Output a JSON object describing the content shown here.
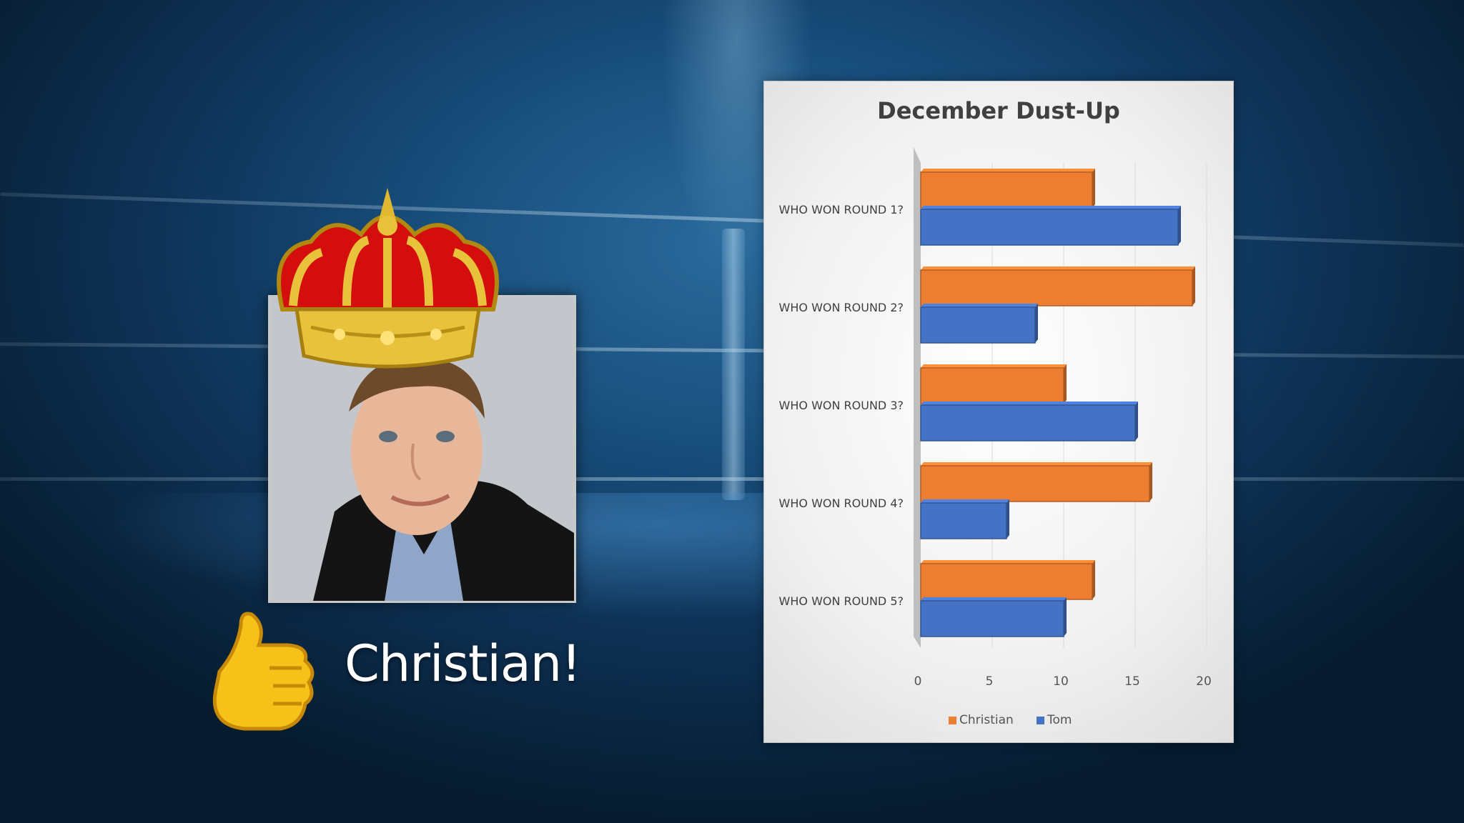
{
  "caption": {
    "winner": "Christian!"
  },
  "icons": {
    "crown": "crown-icon",
    "thumb": "thumbs-up-icon"
  },
  "colors": {
    "christian": "#ed7d31",
    "tom": "#4472c4"
  },
  "chart_data": {
    "type": "bar",
    "orientation": "horizontal",
    "title": "December Dust-Up",
    "xlabel": "",
    "ylabel": "",
    "categories": [
      "WHO WON ROUND 1?",
      "WHO WON ROUND 2?",
      "WHO WON ROUND 3?",
      "WHO WON ROUND 4?",
      "WHO WON ROUND 5?"
    ],
    "series": [
      {
        "name": "Christian",
        "values": [
          12,
          19,
          10,
          16,
          12
        ]
      },
      {
        "name": "Tom",
        "values": [
          18,
          8,
          15,
          6,
          10
        ]
      }
    ],
    "xlim": [
      0,
      20
    ],
    "xticks": [
      "0",
      "5",
      "10",
      "15",
      "20"
    ],
    "grid": true,
    "legend": "bottom",
    "style": "3d"
  }
}
